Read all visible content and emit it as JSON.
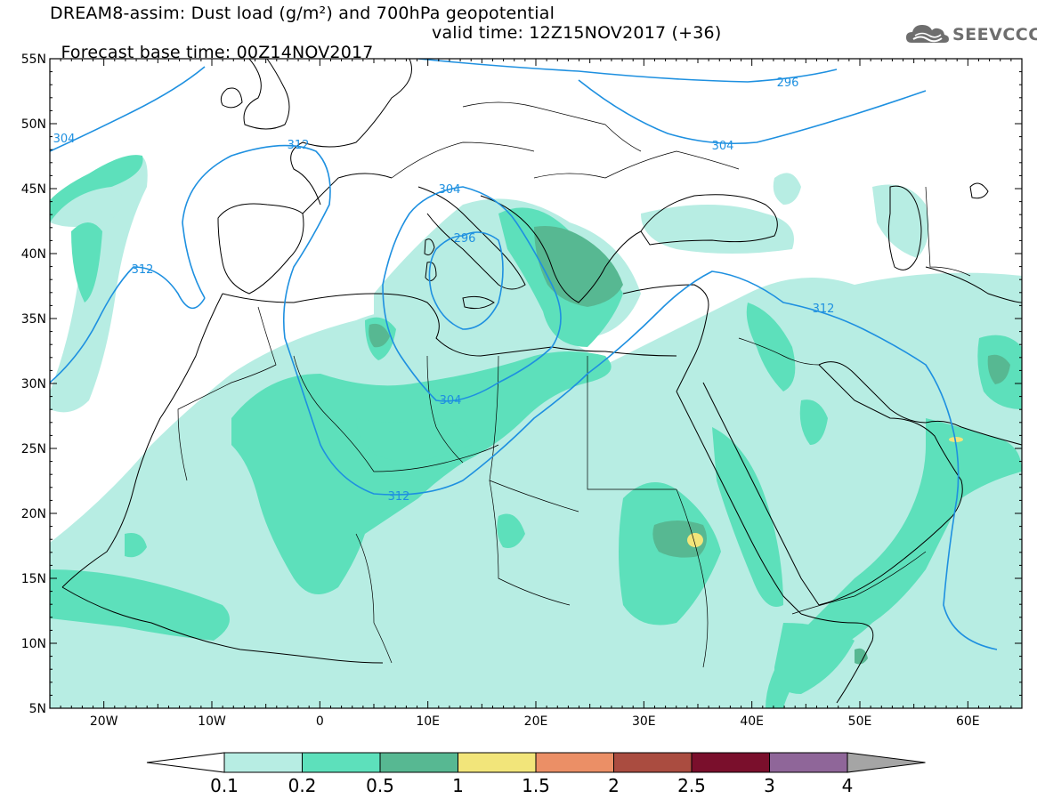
{
  "title": {
    "line1": "DREAM8-assim: Dust load (g/m²) and 700hPa geopotential",
    "base_time": "Forecast base time: 00Z14NOV2017",
    "valid_time": "valid time: 12Z15NOV2017 (+36)"
  },
  "logo": {
    "text": "SEEVCCC",
    "icon": "cloud-logo-icon"
  },
  "map": {
    "projection": "lat-lon",
    "lon_range": [
      -25,
      65
    ],
    "lat_range": [
      5,
      55
    ],
    "lat_ticks": [
      "5N",
      "10N",
      "15N",
      "20N",
      "25N",
      "30N",
      "35N",
      "40N",
      "45N",
      "50N",
      "55N"
    ],
    "lon_ticks": [
      "20W",
      "10W",
      "0",
      "10E",
      "20E",
      "30E",
      "40E",
      "50E",
      "60E"
    ],
    "contours": [
      {
        "level": "296",
        "color": "#1e90e0"
      },
      {
        "level": "304",
        "color": "#1e90e0"
      },
      {
        "level": "312",
        "color": "#1e90e0"
      }
    ],
    "contour_labels": [
      {
        "text": "296"
      },
      {
        "text": "296"
      },
      {
        "text": "304"
      },
      {
        "text": "304"
      },
      {
        "text": "304"
      },
      {
        "text": "304"
      },
      {
        "text": "312"
      },
      {
        "text": "312"
      },
      {
        "text": "312"
      },
      {
        "text": "312"
      }
    ]
  },
  "colorbar": {
    "labels": [
      "0.1",
      "0.2",
      "0.5",
      "1",
      "1.5",
      "2",
      "2.5",
      "3",
      "4"
    ],
    "colors": [
      "#b7ede3",
      "#5de0bb",
      "#57b892",
      "#f2e57a",
      "#eb8f66",
      "#aa4c40",
      "#7a0f2c",
      "#8f6699",
      "#a5a5a5"
    ]
  }
}
